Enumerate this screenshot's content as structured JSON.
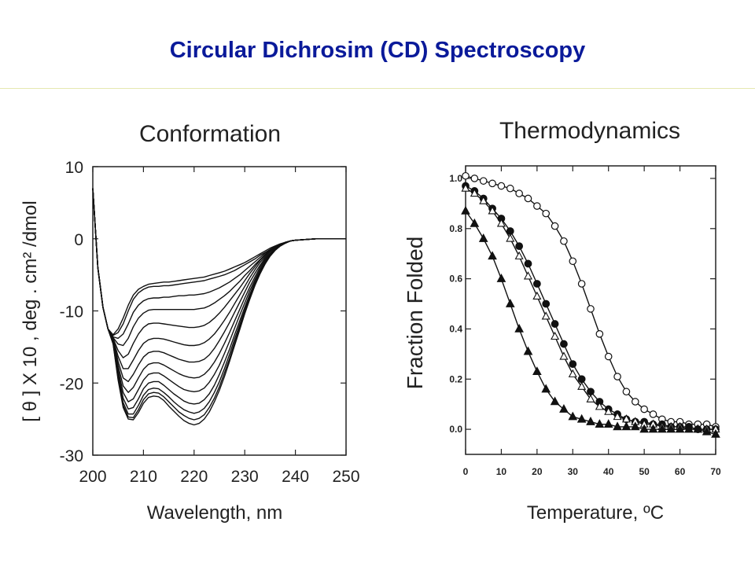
{
  "slide": {
    "title": "Circular Dichrosim (CD) Spectroscopy"
  },
  "chart_data": [
    {
      "type": "line",
      "title": "Conformation",
      "xlabel": "Wavelength, nm",
      "ylabel": "[ θ ] X 10 , deg . cm² /dmol",
      "xlim": [
        200,
        250
      ],
      "ylim": [
        -30,
        10
      ],
      "xticks": [
        "200",
        "210",
        "220",
        "230",
        "240",
        "250"
      ],
      "yticks": [
        "10",
        "0",
        "-10",
        "-20",
        "-30"
      ],
      "x": [
        200,
        201,
        202,
        203,
        204,
        205,
        206,
        207,
        208,
        209,
        210,
        211,
        212,
        213,
        214,
        215,
        216,
        217,
        218,
        219,
        220,
        221,
        222,
        223,
        224,
        225,
        226,
        227,
        228,
        229,
        230,
        231,
        232,
        233,
        234,
        235,
        236,
        237,
        238,
        239,
        240,
        242,
        244,
        246,
        248,
        250
      ],
      "series": [
        {
          "values": [
            7.0,
            -4.0,
            -9.5,
            -12.5,
            -13.3,
            -12.5,
            -11.0,
            -9.2,
            -7.8,
            -7.0,
            -6.6,
            -6.3,
            -6.2,
            -6.1,
            -6.0,
            -6.0,
            -5.9,
            -5.8,
            -5.7,
            -5.6,
            -5.5,
            -5.4,
            -5.3,
            -5.1,
            -4.9,
            -4.7,
            -4.5,
            -4.2,
            -3.9,
            -3.6,
            -3.3,
            -2.9,
            -2.5,
            -2.1,
            -1.7,
            -1.3,
            -1.0,
            -0.7,
            -0.5,
            -0.3,
            -0.2,
            -0.1,
            0.0,
            0.0,
            0.0,
            0.0
          ]
        },
        {
          "values": [
            7.0,
            -4.0,
            -9.5,
            -12.5,
            -13.4,
            -13.0,
            -11.8,
            -10.0,
            -8.4,
            -7.5,
            -7.0,
            -6.7,
            -6.6,
            -6.6,
            -6.5,
            -6.5,
            -6.4,
            -6.3,
            -6.2,
            -6.1,
            -6.0,
            -5.9,
            -5.8,
            -5.6,
            -5.4,
            -5.2,
            -5.0,
            -4.7,
            -4.4,
            -4.0,
            -3.6,
            -3.2,
            -2.8,
            -2.3,
            -1.9,
            -1.5,
            -1.1,
            -0.8,
            -0.5,
            -0.3,
            -0.2,
            -0.1,
            0.0,
            0.0,
            0.0,
            0.0
          ]
        },
        {
          "values": [
            7.0,
            -4.0,
            -9.5,
            -12.5,
            -13.6,
            -13.8,
            -13.2,
            -11.8,
            -10.2,
            -9.2,
            -8.6,
            -8.3,
            -8.2,
            -8.2,
            -8.1,
            -8.1,
            -8.0,
            -7.9,
            -7.9,
            -7.8,
            -7.8,
            -7.7,
            -7.6,
            -7.4,
            -7.1,
            -6.8,
            -6.4,
            -6.0,
            -5.5,
            -5.0,
            -4.4,
            -3.8,
            -3.2,
            -2.6,
            -2.0,
            -1.5,
            -1.1,
            -0.8,
            -0.5,
            -0.3,
            -0.2,
            -0.1,
            0.0,
            0.0,
            0.0,
            0.0
          ]
        },
        {
          "values": [
            7.0,
            -4.0,
            -9.5,
            -12.5,
            -13.7,
            -14.6,
            -14.8,
            -13.8,
            -12.2,
            -11.0,
            -10.3,
            -9.9,
            -9.8,
            -9.8,
            -9.8,
            -9.8,
            -9.8,
            -9.8,
            -9.8,
            -9.8,
            -9.8,
            -9.7,
            -9.6,
            -9.3,
            -8.9,
            -8.4,
            -7.9,
            -7.3,
            -6.6,
            -5.9,
            -5.1,
            -4.4,
            -3.6,
            -2.9,
            -2.2,
            -1.6,
            -1.2,
            -0.8,
            -0.5,
            -0.3,
            -0.2,
            -0.1,
            0.0,
            0.0,
            0.0,
            0.0
          ]
        },
        {
          "values": [
            7.0,
            -4.0,
            -9.5,
            -12.5,
            -13.8,
            -15.5,
            -16.5,
            -16.0,
            -14.5,
            -13.2,
            -12.3,
            -11.8,
            -11.7,
            -11.7,
            -11.8,
            -11.9,
            -12.0,
            -12.1,
            -12.2,
            -12.3,
            -12.3,
            -12.2,
            -12.0,
            -11.6,
            -11.0,
            -10.3,
            -9.5,
            -8.6,
            -7.7,
            -6.8,
            -5.8,
            -4.8,
            -3.9,
            -3.0,
            -2.3,
            -1.7,
            -1.2,
            -0.8,
            -0.5,
            -0.3,
            -0.2,
            -0.1,
            0.0,
            0.0,
            0.0,
            0.0
          ]
        },
        {
          "values": [
            7.0,
            -4.0,
            -9.5,
            -12.5,
            -13.9,
            -16.3,
            -18.0,
            -18.0,
            -16.8,
            -15.5,
            -14.5,
            -14.0,
            -13.8,
            -13.8,
            -13.9,
            -14.1,
            -14.3,
            -14.5,
            -14.7,
            -14.8,
            -14.8,
            -14.7,
            -14.4,
            -13.9,
            -13.2,
            -12.3,
            -11.3,
            -10.2,
            -9.0,
            -7.8,
            -6.6,
            -5.4,
            -4.3,
            -3.3,
            -2.5,
            -1.8,
            -1.3,
            -0.9,
            -0.5,
            -0.3,
            -0.2,
            -0.1,
            0.0,
            0.0,
            0.0,
            0.0
          ]
        },
        {
          "values": [
            7.0,
            -4.0,
            -9.5,
            -12.5,
            -14.0,
            -17.0,
            -19.3,
            -19.8,
            -18.8,
            -17.5,
            -16.4,
            -15.8,
            -15.6,
            -15.6,
            -15.8,
            -16.1,
            -16.4,
            -16.7,
            -16.9,
            -17.1,
            -17.1,
            -17.0,
            -16.7,
            -16.1,
            -15.2,
            -14.1,
            -12.9,
            -11.6,
            -10.2,
            -8.8,
            -7.4,
            -6.0,
            -4.8,
            -3.7,
            -2.7,
            -2.0,
            -1.4,
            -0.9,
            -0.6,
            -0.3,
            -0.2,
            -0.1,
            0.0,
            0.0,
            0.0,
            0.0
          ]
        },
        {
          "values": [
            7.0,
            -4.0,
            -9.5,
            -12.5,
            -14.1,
            -17.6,
            -20.4,
            -21.3,
            -20.6,
            -19.3,
            -18.1,
            -17.4,
            -17.2,
            -17.2,
            -17.5,
            -17.9,
            -18.3,
            -18.7,
            -19.0,
            -19.2,
            -19.3,
            -19.2,
            -18.8,
            -18.1,
            -17.1,
            -15.9,
            -14.5,
            -13.0,
            -11.4,
            -9.8,
            -8.2,
            -6.7,
            -5.3,
            -4.0,
            -2.9,
            -2.1,
            -1.5,
            -1.0,
            -0.6,
            -0.3,
            -0.2,
            -0.1,
            0.0,
            0.0,
            0.0,
            0.0
          ]
        },
        {
          "values": [
            7.0,
            -4.0,
            -9.5,
            -12.5,
            -14.2,
            -18.2,
            -21.3,
            -22.6,
            -22.2,
            -20.9,
            -19.6,
            -18.8,
            -18.6,
            -18.6,
            -19.0,
            -19.5,
            -20.0,
            -20.5,
            -20.9,
            -21.1,
            -21.2,
            -21.1,
            -20.7,
            -19.9,
            -18.8,
            -17.5,
            -15.9,
            -14.2,
            -12.4,
            -10.6,
            -8.9,
            -7.2,
            -5.7,
            -4.3,
            -3.1,
            -2.2,
            -1.5,
            -1.0,
            -0.6,
            -0.3,
            -0.2,
            -0.1,
            0.0,
            0.0,
            0.0,
            0.0
          ]
        },
        {
          "values": [
            7.0,
            -4.0,
            -9.5,
            -12.5,
            -14.3,
            -18.7,
            -22.1,
            -23.6,
            -23.4,
            -22.2,
            -20.8,
            -20.0,
            -19.8,
            -19.8,
            -20.3,
            -20.9,
            -21.5,
            -22.0,
            -22.5,
            -22.8,
            -22.9,
            -22.8,
            -22.3,
            -21.5,
            -20.3,
            -18.8,
            -17.1,
            -15.3,
            -13.3,
            -11.4,
            -9.5,
            -7.7,
            -6.0,
            -4.5,
            -3.3,
            -2.3,
            -1.6,
            -1.0,
            -0.6,
            -0.3,
            -0.2,
            -0.1,
            0.0,
            0.0,
            0.0,
            0.0
          ]
        },
        {
          "values": [
            7.0,
            -4.0,
            -9.5,
            -12.5,
            -14.4,
            -19.1,
            -22.7,
            -24.3,
            -24.3,
            -23.1,
            -21.7,
            -20.9,
            -20.7,
            -20.8,
            -21.3,
            -21.9,
            -22.6,
            -23.2,
            -23.7,
            -24.0,
            -24.2,
            -24.0,
            -23.5,
            -22.6,
            -21.3,
            -19.8,
            -18.0,
            -16.0,
            -13.9,
            -11.9,
            -9.9,
            -8.0,
            -6.3,
            -4.7,
            -3.4,
            -2.4,
            -1.6,
            -1.0,
            -0.6,
            -0.3,
            -0.2,
            -0.1,
            0.0,
            0.0,
            0.0,
            0.0
          ]
        },
        {
          "values": [
            7.0,
            -4.0,
            -9.5,
            -12.5,
            -14.5,
            -19.4,
            -23.1,
            -24.7,
            -24.8,
            -23.7,
            -22.3,
            -21.5,
            -21.3,
            -21.4,
            -21.9,
            -22.6,
            -23.3,
            -24.0,
            -24.5,
            -24.9,
            -25.1,
            -24.9,
            -24.4,
            -23.4,
            -22.1,
            -20.5,
            -18.6,
            -16.6,
            -14.4,
            -12.3,
            -10.2,
            -8.2,
            -6.4,
            -4.8,
            -3.5,
            -2.4,
            -1.6,
            -1.0,
            -0.6,
            -0.3,
            -0.2,
            -0.1,
            0.0,
            0.0,
            0.0,
            0.0
          ]
        },
        {
          "values": [
            7.0,
            -4.0,
            -9.5,
            -12.5,
            -14.6,
            -19.6,
            -23.4,
            -25.0,
            -25.1,
            -24.1,
            -22.8,
            -22.0,
            -21.8,
            -21.9,
            -22.4,
            -23.2,
            -23.9,
            -24.6,
            -25.2,
            -25.6,
            -25.8,
            -25.6,
            -25.0,
            -24.0,
            -22.6,
            -21.0,
            -19.1,
            -17.0,
            -14.8,
            -12.6,
            -10.4,
            -8.4,
            -6.5,
            -4.9,
            -3.5,
            -2.4,
            -1.6,
            -1.0,
            -0.6,
            -0.3,
            -0.2,
            -0.1,
            0.0,
            0.0,
            0.0,
            0.0
          ]
        }
      ]
    },
    {
      "type": "scatter",
      "title": "Thermodynamics",
      "xlabel": "Temperature, ºC",
      "ylabel": "Fraction Folded",
      "xlim": [
        0,
        70
      ],
      "ylim": [
        -0.1,
        1.05
      ],
      "xticks": [
        "0",
        "10",
        "20",
        "30",
        "40",
        "50",
        "60",
        "70"
      ],
      "yticks": [
        "1.0",
        "0.8",
        "0.6",
        "0.4",
        "0.2",
        "0.0"
      ],
      "series": [
        {
          "marker": "open-circle",
          "x": [
            0,
            2.5,
            5,
            7.5,
            10,
            12.5,
            15,
            17.5,
            20,
            22.5,
            25,
            27.5,
            30,
            32.5,
            35,
            37.5,
            40,
            42.5,
            45,
            47.5,
            50,
            52.5,
            55,
            57.5,
            60,
            62.5,
            65,
            67.5,
            70
          ],
          "values": [
            1.01,
            1.0,
            0.99,
            0.98,
            0.97,
            0.96,
            0.94,
            0.92,
            0.89,
            0.86,
            0.81,
            0.75,
            0.67,
            0.58,
            0.48,
            0.38,
            0.29,
            0.21,
            0.15,
            0.11,
            0.08,
            0.06,
            0.04,
            0.03,
            0.03,
            0.02,
            0.02,
            0.02,
            0.01
          ]
        },
        {
          "marker": "filled-circle",
          "x": [
            0,
            2.5,
            5,
            7.5,
            10,
            12.5,
            15,
            17.5,
            20,
            22.5,
            25,
            27.5,
            30,
            32.5,
            35,
            37.5,
            40,
            42.5,
            45,
            47.5,
            50,
            52.5,
            55,
            57.5,
            60,
            62.5,
            65,
            67.5,
            70
          ],
          "values": [
            0.97,
            0.95,
            0.92,
            0.88,
            0.84,
            0.79,
            0.73,
            0.66,
            0.58,
            0.5,
            0.42,
            0.34,
            0.26,
            0.2,
            0.15,
            0.11,
            0.08,
            0.06,
            0.04,
            0.03,
            0.03,
            0.02,
            0.02,
            0.01,
            0.01,
            0.01,
            0.0,
            0.0,
            0.0
          ]
        },
        {
          "marker": "open-triangle",
          "x": [
            0,
            2.5,
            5,
            7.5,
            10,
            12.5,
            15,
            17.5,
            20,
            22.5,
            25,
            27.5,
            30,
            32.5,
            35,
            37.5,
            40,
            42.5,
            45,
            47.5,
            50,
            52.5,
            55,
            57.5,
            60,
            62.5,
            65,
            67.5,
            70
          ],
          "values": [
            0.96,
            0.94,
            0.91,
            0.87,
            0.82,
            0.76,
            0.69,
            0.61,
            0.53,
            0.45,
            0.37,
            0.29,
            0.22,
            0.17,
            0.12,
            0.09,
            0.07,
            0.05,
            0.04,
            0.03,
            0.02,
            0.02,
            0.01,
            0.01,
            0.01,
            0.0,
            0.0,
            0.0,
            0.0
          ]
        },
        {
          "marker": "filled-triangle",
          "x": [
            0,
            2.5,
            5,
            7.5,
            10,
            12.5,
            15,
            17.5,
            20,
            22.5,
            25,
            27.5,
            30,
            32.5,
            35,
            37.5,
            40,
            42.5,
            45,
            47.5,
            50,
            52.5,
            55,
            57.5,
            60,
            62.5,
            65,
            67.5,
            70
          ],
          "values": [
            0.87,
            0.82,
            0.76,
            0.69,
            0.6,
            0.5,
            0.4,
            0.31,
            0.23,
            0.16,
            0.11,
            0.08,
            0.05,
            0.04,
            0.03,
            0.02,
            0.02,
            0.01,
            0.01,
            0.01,
            0.0,
            0.0,
            0.0,
            0.0,
            0.0,
            0.0,
            0.0,
            -0.01,
            -0.02
          ]
        }
      ]
    }
  ]
}
